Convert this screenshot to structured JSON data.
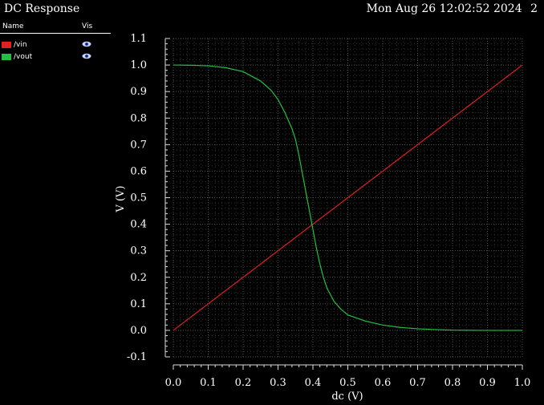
{
  "header": {
    "title": "DC Response",
    "timestamp": "Mon Aug 26 12:02:52 2024",
    "page_number": "2"
  },
  "legend": {
    "name_header": "Name",
    "vis_header": "Vis",
    "items": [
      {
        "label": "/vin",
        "color": "#e02020",
        "icon": "eye-icon"
      },
      {
        "label": "/vout",
        "color": "#20c040",
        "icon": "eye-icon"
      }
    ]
  },
  "chart_data": {
    "type": "line",
    "xlabel": "dc (V)",
    "ylabel": "V (V)",
    "xlim": [
      0.0,
      1.0
    ],
    "ylim": [
      -0.1,
      1.1
    ],
    "x_ticks": [
      "0.0",
      "0.1",
      "0.2",
      "0.3",
      "0.4",
      "0.5",
      "0.6",
      "0.7",
      "0.8",
      "0.9",
      "1.0"
    ],
    "y_ticks": [
      "-0.1",
      "0.0",
      "0.1",
      "0.2",
      "0.3",
      "0.4",
      "0.5",
      "0.6",
      "0.7",
      "0.8",
      "0.9",
      "1.0",
      "1.1"
    ],
    "grid": true,
    "background": "#000000",
    "grid_color": "#555555",
    "series": [
      {
        "name": "/vin",
        "color": "#e02020",
        "x": [
          0.0,
          1.0
        ],
        "y": [
          0.0,
          1.0
        ]
      },
      {
        "name": "/vout",
        "color": "#20c040",
        "x": [
          0.0,
          0.05,
          0.1,
          0.15,
          0.2,
          0.25,
          0.28,
          0.3,
          0.32,
          0.34,
          0.35,
          0.36,
          0.37,
          0.38,
          0.39,
          0.4,
          0.41,
          0.42,
          0.43,
          0.44,
          0.45,
          0.46,
          0.48,
          0.5,
          0.55,
          0.6,
          0.65,
          0.7,
          0.75,
          0.8,
          0.9,
          1.0
        ],
        "y": [
          1.0,
          0.999,
          0.997,
          0.99,
          0.975,
          0.94,
          0.905,
          0.87,
          0.82,
          0.76,
          0.72,
          0.66,
          0.59,
          0.52,
          0.45,
          0.38,
          0.31,
          0.25,
          0.2,
          0.16,
          0.135,
          0.11,
          0.08,
          0.058,
          0.035,
          0.02,
          0.011,
          0.006,
          0.003,
          0.001,
          0.0,
          0.0
        ]
      }
    ]
  }
}
